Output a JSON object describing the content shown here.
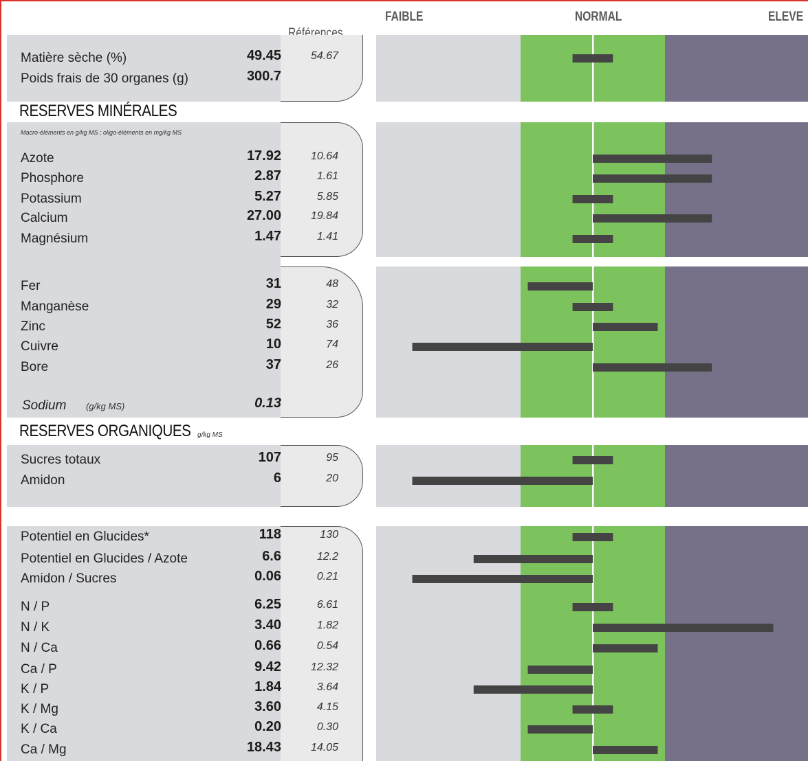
{
  "header": {
    "faible": "FAIBLE",
    "normal": "NORMAL",
    "eleve": "ELEVE",
    "references": "Références"
  },
  "sections": {
    "reserves_minerales": "RESERVES MINÉRALES",
    "minerales_note": "Macro-éléments en g/kg MS ; oligo-éléments en mg/kg MS",
    "reserves_organiques": "RESERVES ORGANIQUES",
    "organiques_unit": "g/kg MS",
    "sodium_unit": "(g/kg MS)"
  },
  "colors": {
    "faible": "#d9dadd",
    "normal": "#7dc35d",
    "eleve": "#767189",
    "bar": "#444444",
    "frame": "#d9342b"
  },
  "rows": [
    {
      "label": "Matière sèche (%)",
      "value": "49.45",
      "reference": "54.67"
    },
    {
      "label": "Poids frais de 30 organes (g)",
      "value": "300.7",
      "reference": ""
    },
    {
      "label": "Azote",
      "value": "17.92",
      "reference": "10.64"
    },
    {
      "label": "Phosphore",
      "value": "2.87",
      "reference": "1.61"
    },
    {
      "label": "Potassium",
      "value": "5.27",
      "reference": "5.85"
    },
    {
      "label": "Calcium",
      "value": "27.00",
      "reference": "19.84"
    },
    {
      "label": "Magnésium",
      "value": "1.47",
      "reference": "1.41"
    },
    {
      "label": "Fer",
      "value": "31",
      "reference": "48"
    },
    {
      "label": "Manganèse",
      "value": "29",
      "reference": "32"
    },
    {
      "label": "Zinc",
      "value": "52",
      "reference": "36"
    },
    {
      "label": "Cuivre",
      "value": "10",
      "reference": "74"
    },
    {
      "label": "Bore",
      "value": "37",
      "reference": "26"
    },
    {
      "label": "Sodium",
      "value": "0.13",
      "reference": ""
    },
    {
      "label": "Sucres totaux",
      "value": "107",
      "reference": "95"
    },
    {
      "label": "Amidon",
      "value": "6",
      "reference": "20"
    },
    {
      "label": "Potentiel en Glucides*",
      "value": "118",
      "reference": "130"
    },
    {
      "label": "Potentiel en Glucides / Azote",
      "value": "6.6",
      "reference": "12.2"
    },
    {
      "label": "Amidon / Sucres",
      "value": "0.06",
      "reference": "0.21"
    },
    {
      "label": "N / P",
      "value": "6.25",
      "reference": "6.61"
    },
    {
      "label": "N / K",
      "value": "3.40",
      "reference": "1.82"
    },
    {
      "label": "N / Ca",
      "value": "0.66",
      "reference": "0.54"
    },
    {
      "label": "Ca / P",
      "value": "9.42",
      "reference": "12.32"
    },
    {
      "label": "K / P",
      "value": "1.84",
      "reference": "3.64"
    },
    {
      "label": "K / Mg",
      "value": "3.60",
      "reference": "4.15"
    },
    {
      "label": "K / Ca",
      "value": "0.20",
      "reference": "0.30"
    },
    {
      "label": "Ca / Mg",
      "value": "18.43",
      "reference": "14.05"
    }
  ],
  "chart_data": {
    "type": "bar",
    "orientation": "horizontal",
    "zones": [
      "FAIBLE",
      "NORMAL",
      "ELEVE"
    ],
    "note": "bars are deviations from the reference (normal centre line); from/to are fractions of zone scale where 0 = reference",
    "bars": [
      {
        "item": "Matière sèche (%)",
        "from": -0.28,
        "to": 0.28
      },
      {
        "item": "Azote",
        "from": 0.0,
        "to": 1.65
      },
      {
        "item": "Phosphore",
        "from": 0.0,
        "to": 1.65
      },
      {
        "item": "Potassium",
        "from": -0.28,
        "to": 0.28
      },
      {
        "item": "Calcium",
        "from": 0.0,
        "to": 1.65
      },
      {
        "item": "Magnésium",
        "from": -0.28,
        "to": 0.28
      },
      {
        "item": "Fer",
        "from": -0.9,
        "to": 0.0
      },
      {
        "item": "Manganèse",
        "from": -0.28,
        "to": 0.28
      },
      {
        "item": "Zinc",
        "from": 0.0,
        "to": 0.9
      },
      {
        "item": "Cuivre",
        "from": -2.5,
        "to": 0.0
      },
      {
        "item": "Bore",
        "from": 0.0,
        "to": 1.65
      },
      {
        "item": "Sucres totaux",
        "from": -0.28,
        "to": 0.28
      },
      {
        "item": "Amidon",
        "from": -2.5,
        "to": 0.0
      },
      {
        "item": "Potentiel en Glucides*",
        "from": -0.28,
        "to": 0.28
      },
      {
        "item": "Potentiel en Glucides / Azote",
        "from": -1.65,
        "to": 0.0
      },
      {
        "item": "Amidon / Sucres",
        "from": -2.5,
        "to": 0.0
      },
      {
        "item": "N / P",
        "from": -0.28,
        "to": 0.28
      },
      {
        "item": "N / K",
        "from": 0.0,
        "to": 2.5
      },
      {
        "item": "N / Ca",
        "from": 0.0,
        "to": 0.9
      },
      {
        "item": "Ca / P",
        "from": -0.9,
        "to": 0.0
      },
      {
        "item": "K / P",
        "from": -1.65,
        "to": 0.0
      },
      {
        "item": "K / Mg",
        "from": -0.28,
        "to": 0.28
      },
      {
        "item": "K / Ca",
        "from": -0.9,
        "to": 0.0
      },
      {
        "item": "Ca / Mg",
        "from": 0.0,
        "to": 0.9
      }
    ]
  }
}
